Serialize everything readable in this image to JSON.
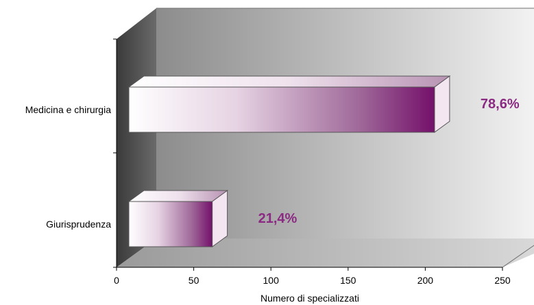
{
  "chart_data": {
    "type": "bar",
    "orientation": "horizontal",
    "style": "3d",
    "categories": [
      "Medicina e chirurgia",
      "Giurisprudenza"
    ],
    "values": [
      198,
      54
    ],
    "data_labels": [
      "78,6%",
      "21,4%"
    ],
    "xlabel": "Numero di specializzati",
    "ylabel": "",
    "xlim": [
      0,
      250
    ],
    "xticks": [
      "0",
      "50",
      "100",
      "150",
      "200",
      "250"
    ],
    "grid": false,
    "legend": "none"
  },
  "colors": {
    "bar_dark": "#7a1a70",
    "bar_light": "#ffffff",
    "label_color": "#8b2a82",
    "wall_left": "#e8e8e8",
    "wall_right": "#8a8a8a",
    "side_wall": "#4a4a4a",
    "floor": "#a8a8a8"
  }
}
